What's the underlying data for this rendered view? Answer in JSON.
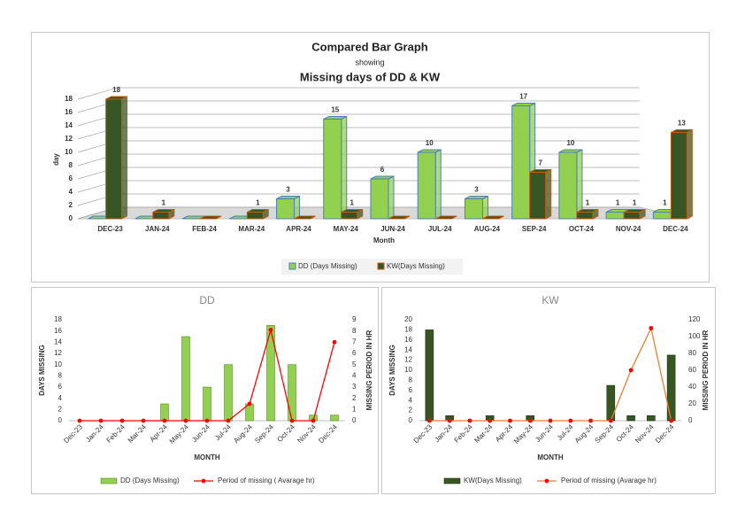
{
  "chart_data": [
    {
      "type": "bar",
      "three_d": true,
      "title_lines": [
        "Compared Bar Graph",
        "showing",
        "Missing days of DD & KW"
      ],
      "x_label": "Month",
      "y_label": "day",
      "categories": [
        "DEC-23",
        "JAN-24",
        "FEB-24",
        "MAR-24",
        "APR-24",
        "MAY-24",
        "JUN-24",
        "JUL-24",
        "AUG-24",
        "SEP-24",
        "OCT-24",
        "NOV-24",
        "DEC-24"
      ],
      "series": [
        {
          "name": "DD (Days Missing)",
          "color": "#92d050",
          "edge": "#4e7fb8",
          "values": [
            0,
            0,
            0,
            0,
            3,
            15,
            6,
            10,
            3,
            17,
            10,
            1,
            1
          ]
        },
        {
          "name": "KW(Days Missing)",
          "color": "#375623",
          "edge": "#c55a11",
          "values": [
            18,
            1,
            0,
            1,
            0,
            1,
            0,
            0,
            0,
            7,
            1,
            1,
            13
          ]
        }
      ],
      "ylim": [
        0,
        18
      ],
      "yticks": [
        0,
        2,
        4,
        6,
        8,
        10,
        12,
        14,
        16,
        18
      ],
      "grid": true,
      "legend": "bottom"
    },
    {
      "type": "bar",
      "title": "DD",
      "x_label": "MONTH",
      "y_label": "DAYS MISSING",
      "y2_label": "MISSING PERIOD IN HR",
      "categories": [
        "Dec-23",
        "Jan-24",
        "Feb-24",
        "Mar-24",
        "Apr-24",
        "May-24",
        "Jun-24",
        "Jul-24",
        "Aug-24",
        "Sep-24",
        "Oct-24",
        "Nov-24",
        "Dec-24"
      ],
      "series": [
        {
          "name": "DD (Days Missing)",
          "color": "#92d050",
          "edge": "#5b8a2a",
          "values": [
            0,
            0,
            0,
            0,
            3,
            15,
            6,
            10,
            3,
            17,
            10,
            1,
            1
          ]
        },
        {
          "name": "Period of missing ( Avarage hr)",
          "type": "line",
          "axis": "y2",
          "color": "#ff0000",
          "marker_color": "#ff0000",
          "values": [
            0,
            0,
            0,
            0,
            0,
            0,
            0,
            0,
            1.5,
            8.1,
            0,
            0,
            7
          ]
        }
      ],
      "ylim": [
        0,
        18
      ],
      "yticks": [
        0,
        2,
        4,
        6,
        8,
        10,
        12,
        14,
        16,
        18
      ],
      "y2lim": [
        0,
        9
      ],
      "y2ticks": [
        0,
        1,
        2,
        3,
        4,
        5,
        6,
        7,
        8,
        9
      ],
      "grid": false,
      "legend": "bottom"
    },
    {
      "type": "bar",
      "title": "KW",
      "x_label": "MONTH",
      "y_label": "DAYS MISSING",
      "y2_label": "MISSING PERIOD IN HR",
      "categories": [
        "Dec-23",
        "Jan-24",
        "Feb-24",
        "Mar-24",
        "Apr-24",
        "May-24",
        "Jun-24",
        "Jul-24",
        "Aug-24",
        "Sep-24",
        "Oct-24",
        "Nov-24",
        "Dec-24"
      ],
      "series": [
        {
          "name": "KW(Days Missing)",
          "color": "#375623",
          "edge": "#203414",
          "values": [
            18,
            1,
            0,
            1,
            0,
            1,
            0,
            0,
            0,
            7,
            1,
            1,
            13
          ]
        },
        {
          "name": "Period of missing (Avarage hr)",
          "type": "line",
          "axis": "y2",
          "color": "#ed7d31",
          "marker_color": "#ff0000",
          "values": [
            0,
            0,
            0,
            0,
            0,
            0,
            0,
            0,
            0,
            0,
            60,
            110,
            0
          ]
        }
      ],
      "ylim": [
        0,
        20
      ],
      "yticks": [
        0,
        2,
        4,
        6,
        8,
        10,
        12,
        14,
        16,
        18,
        20
      ],
      "y2lim": [
        0,
        120
      ],
      "y2ticks": [
        0,
        20,
        40,
        60,
        80,
        100,
        120
      ],
      "grid": false,
      "legend": "bottom"
    }
  ]
}
